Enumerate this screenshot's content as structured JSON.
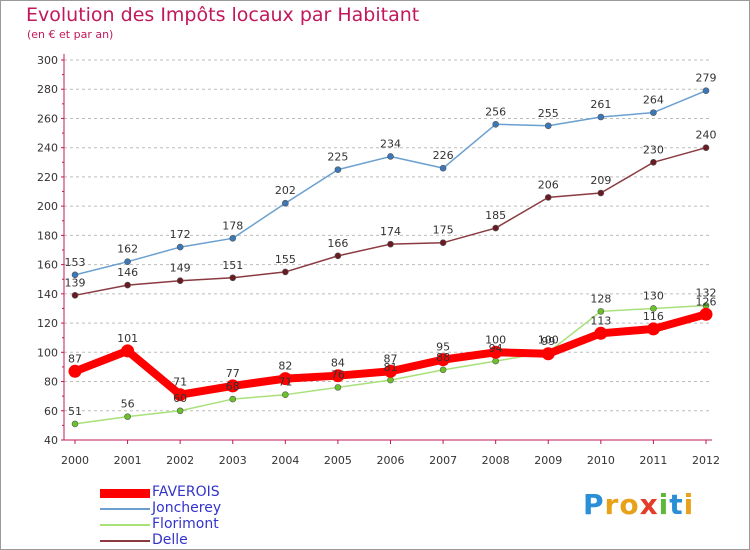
{
  "title": "Evolution des Impôts locaux par Habitant",
  "subtitle": "(en € et par an)",
  "logo": {
    "text": "Proxiti",
    "letter_colors": [
      "#2a8fd6",
      "#e8a21a",
      "#e8a21a",
      "#e33d2a",
      "#5cb83a",
      "#2a8fd6",
      "#e8a21a"
    ]
  },
  "chart_data": {
    "type": "line",
    "x": [
      "2000",
      "2001",
      "2002",
      "2003",
      "2004",
      "2005",
      "2006",
      "2007",
      "2008",
      "2009",
      "2010",
      "2011",
      "2012"
    ],
    "ylim": [
      40,
      300
    ],
    "yticks": [
      40,
      60,
      80,
      100,
      120,
      140,
      160,
      180,
      200,
      220,
      240,
      260,
      280,
      300
    ],
    "grid": "horizontal dashed",
    "series": [
      {
        "name": "Joncherey",
        "color": "#6a9fd0",
        "marker": "#3a78b8",
        "values": [
          153,
          162,
          172,
          178,
          202,
          225,
          234,
          226,
          256,
          255,
          261,
          264,
          279
        ]
      },
      {
        "name": "Delle",
        "color": "#8a3a40",
        "marker": "#6a1b22",
        "values": [
          139,
          146,
          149,
          151,
          155,
          166,
          174,
          175,
          185,
          206,
          209,
          230,
          240
        ]
      },
      {
        "name": "Florimont",
        "color": "#a8e07a",
        "marker": "#6ac22a",
        "values": [
          51,
          56,
          60,
          68,
          71,
          76,
          81,
          88,
          94,
          100,
          128,
          130,
          132
        ]
      },
      {
        "name": "FAVEROIS",
        "color": "#ff0000",
        "marker": "#ff0000",
        "values": [
          87,
          101,
          71,
          77,
          82,
          84,
          87,
          95,
          100,
          99,
          113,
          116,
          126
        ]
      }
    ]
  }
}
